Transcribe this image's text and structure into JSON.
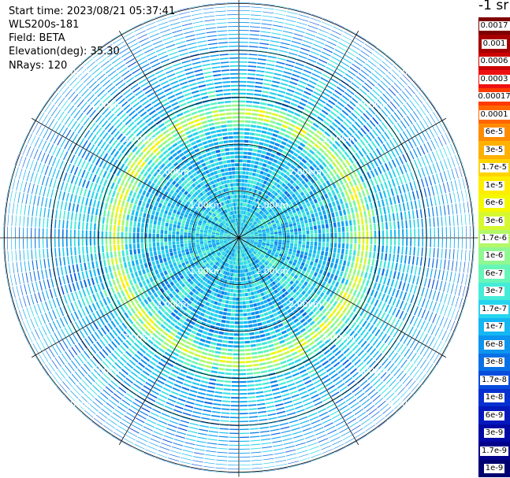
{
  "header": {
    "start_time": "Start time: 2023/08/21 05:37:41",
    "device": "WLS200s-181",
    "field": "Field: BETA",
    "elevation": "Elevation(deg): 35.30",
    "nrays": "NRays: 120"
  },
  "colorbar": {
    "unit": "-1 sr",
    "labels": [
      "0.0017",
      "0.001",
      "0.0006",
      "0.0003",
      "0.00017",
      "0.0001",
      "6e-5",
      "3e-5",
      "1.7e-5",
      "1e-5",
      "6e-6",
      "3e-6",
      "1.7e-6",
      "1e-6",
      "6e-7",
      "3e-7",
      "1.7e-7",
      "1e-7",
      "6e-8",
      "3e-8",
      "1.7e-8",
      "1e-8",
      "6e-9",
      "3e-9",
      "1.7e-9",
      "1e-9"
    ],
    "colors": [
      "#7f0000",
      "#a50000",
      "#cc0000",
      "#ee1010",
      "#ff3a00",
      "#ff6600",
      "#ff8c00",
      "#ffb000",
      "#ffd400",
      "#ffee00",
      "#f4f800",
      "#d6f830",
      "#b2f868",
      "#90f890",
      "#66f6b8",
      "#44ecd8",
      "#26d4ee",
      "#14b6f4",
      "#0c94ee",
      "#0a70e6",
      "#084cdc",
      "#0630d0",
      "#0418bc",
      "#0208a4",
      "#00008a",
      "#000070"
    ]
  },
  "chart_data": {
    "type": "heatmap",
    "projection": "polar-ppi",
    "nrays": 120,
    "range_rings_km": [
      1,
      2,
      3,
      4,
      5
    ],
    "max_range_km": 5.1,
    "spokes_deg": [
      0,
      30,
      60,
      90,
      120,
      150,
      180,
      210,
      240,
      270,
      300,
      330
    ],
    "ring_labels": [
      "1.00km",
      "2.00km",
      "3.00km",
      "4.00km",
      "5.00km"
    ],
    "value_scale": "log",
    "vmin": 1e-09,
    "vmax": 0.0017,
    "profile": {
      "range_km": [
        0.0,
        0.5,
        1.0,
        1.5,
        2.0,
        2.3,
        2.5,
        2.65,
        2.8,
        3.0,
        3.5,
        4.0,
        4.5,
        5.0
      ],
      "beta": [
        1.7e-07,
        1.7e-07,
        1.5e-07,
        1.3e-07,
        1.2e-07,
        1.3e-07,
        6e-07,
        4e-06,
        1e-06,
        1.5e-07,
        1e-07,
        8e-08,
        7e-08,
        6e-08
      ]
    }
  }
}
